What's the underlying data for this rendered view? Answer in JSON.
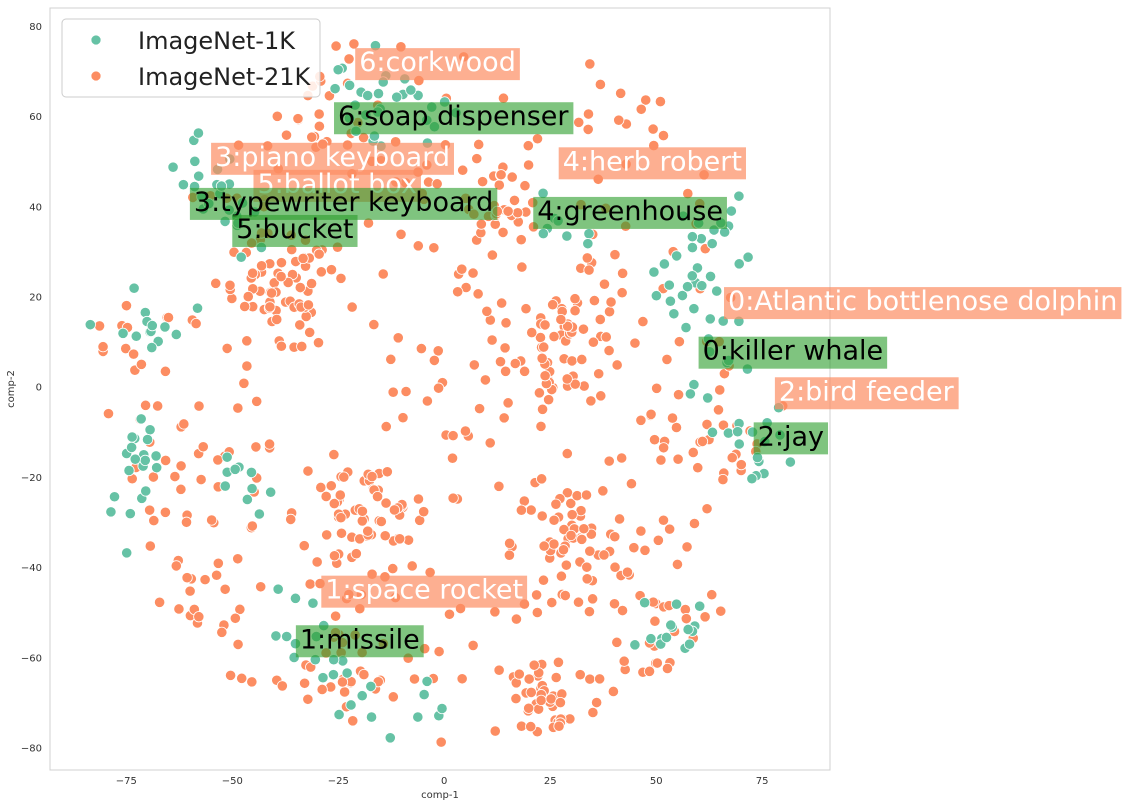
{
  "chart_data": {
    "type": "scatter",
    "title": "",
    "xlabel": "comp-1",
    "ylabel": "comp-2",
    "xlim": [
      -93,
      91
    ],
    "ylim": [
      -85,
      84
    ],
    "xticks": [
      -75,
      -50,
      -25,
      0,
      25,
      50,
      75
    ],
    "yticks": [
      80,
      60,
      40,
      20,
      0,
      -20,
      -40,
      -60,
      -80
    ],
    "grid": false,
    "legend_position": "top-left",
    "colors": {
      "imagenet_1k": "#66c2a5",
      "imagenet_21k": "#fc8d62"
    },
    "series": [
      {
        "name": "ImageNet-1K",
        "color": "#66c2a5",
        "points_described": "green clusters around labeled anchors and near outer ring"
      },
      {
        "name": "ImageNet-21K",
        "color": "#fc8d62",
        "points_described": "orange points spread across the disk"
      }
    ],
    "annotations": [
      {
        "text": "6:corkwood",
        "x": -21,
        "y": 70,
        "style": "21k"
      },
      {
        "text": "6:soap dispenser",
        "x": -26,
        "y": 58,
        "style": "1k"
      },
      {
        "text": "3:piano keyboard",
        "x": -55,
        "y": 49,
        "style": "21k"
      },
      {
        "text": "5:ballot box",
        "x": -45,
        "y": 43,
        "style": "21k"
      },
      {
        "text": "3:typewriter keyboard",
        "x": -60,
        "y": 39,
        "style": "1k"
      },
      {
        "text": "5:bucket",
        "x": -50,
        "y": 33,
        "style": "1k"
      },
      {
        "text": "4:herb robert",
        "x": 27,
        "y": 48,
        "style": "21k"
      },
      {
        "text": "4:greenhouse",
        "x": 21,
        "y": 37,
        "style": "1k"
      },
      {
        "text": "0:Atlantic bottlenose dolphin",
        "x": 66,
        "y": 17,
        "style": "21k"
      },
      {
        "text": "0:killer whale",
        "x": 60,
        "y": 6,
        "style": "1k"
      },
      {
        "text": "2:bird feeder",
        "x": 78,
        "y": -3,
        "style": "21k"
      },
      {
        "text": "2:jay",
        "x": 73,
        "y": -13,
        "style": "1k"
      },
      {
        "text": "1:space rocket",
        "x": -29,
        "y": -47,
        "style": "21k"
      },
      {
        "text": "1:missile",
        "x": -35,
        "y": -58,
        "style": "1k"
      }
    ],
    "clusters_1k": [
      [
        -20,
        66,
        10
      ],
      [
        -5,
        61,
        12
      ],
      [
        -15,
        56,
        8
      ],
      [
        -55,
        43,
        14
      ],
      [
        -48,
        36,
        8
      ],
      [
        28,
        38,
        8
      ],
      [
        62,
        33,
        18
      ],
      [
        58,
        20,
        14
      ],
      [
        65,
        7,
        10
      ],
      [
        72,
        -12,
        16
      ],
      [
        -70,
        12,
        14
      ],
      [
        -72,
        -14,
        18
      ],
      [
        -32,
        -55,
        10
      ],
      [
        -25,
        -68,
        10
      ],
      [
        55,
        -55,
        18
      ],
      [
        -60,
        55,
        10
      ],
      [
        -80,
        -30,
        8
      ],
      [
        -45,
        -25,
        10
      ],
      [
        0,
        -70,
        6
      ]
    ],
    "clusters_21k": [
      [
        0,
        0,
        260
      ],
      [
        -40,
        20,
        60
      ],
      [
        30,
        10,
        60
      ],
      [
        -20,
        -30,
        60
      ],
      [
        30,
        -35,
        60
      ],
      [
        24,
        -70,
        45
      ],
      [
        -25,
        -67,
        20
      ],
      [
        -60,
        -45,
        18
      ],
      [
        50,
        -55,
        25
      ],
      [
        -30,
        60,
        20
      ],
      [
        40,
        60,
        12
      ],
      [
        -78,
        8,
        12
      ],
      [
        -60,
        -20,
        20
      ],
      [
        60,
        -10,
        20
      ],
      [
        10,
        40,
        25
      ]
    ]
  }
}
